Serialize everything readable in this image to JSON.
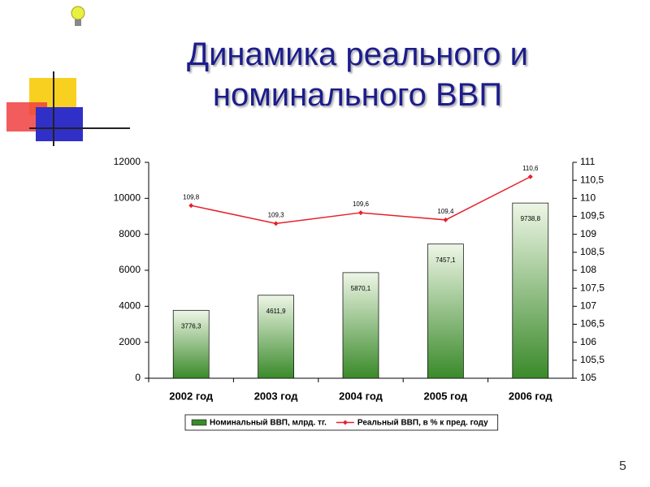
{
  "chart_data": {
    "type": "bar",
    "title": "Динамика реального и номинального ВВП",
    "categories": [
      "2002 год",
      "2003 год",
      "2004 год",
      "2005 год",
      "2006 год"
    ],
    "series": [
      {
        "name": "Номинальный ВВП, млрд. тг.",
        "type": "bar",
        "color": "#3a8a2a",
        "values": [
          3776.3,
          4611.9,
          5870.1,
          7457.1,
          9738.8
        ],
        "value_labels": [
          "3776,3",
          "4611,9",
          "5870,1",
          "7457,1",
          "9738,8"
        ]
      },
      {
        "name": "Реальный ВВП, в % к пред. году",
        "type": "line",
        "axis": "y2",
        "color": "#e8202a",
        "values": [
          109.8,
          109.3,
          109.6,
          109.4,
          110.6
        ],
        "value_labels": [
          "109,8",
          "109,3",
          "109,6",
          "109,4",
          "110,6"
        ]
      }
    ],
    "ylim": [
      0,
      12000
    ],
    "yticks": [
      0,
      2000,
      4000,
      6000,
      8000,
      10000,
      12000
    ],
    "y2lim": [
      105,
      111
    ],
    "y2ticks": [
      105,
      {
        "value": 105.5,
        "label": "105,5"
      },
      106,
      {
        "value": 106.5,
        "label": "106,5"
      },
      107,
      {
        "value": 107.5,
        "label": "107,5"
      },
      108,
      {
        "value": 108.5,
        "label": "108,5"
      },
      109,
      {
        "value": 109.5,
        "label": "109,5"
      },
      110,
      {
        "value": 110.5,
        "label": "110,5"
      },
      111
    ],
    "grid": false,
    "legend": "bottom"
  },
  "page_number": "5"
}
